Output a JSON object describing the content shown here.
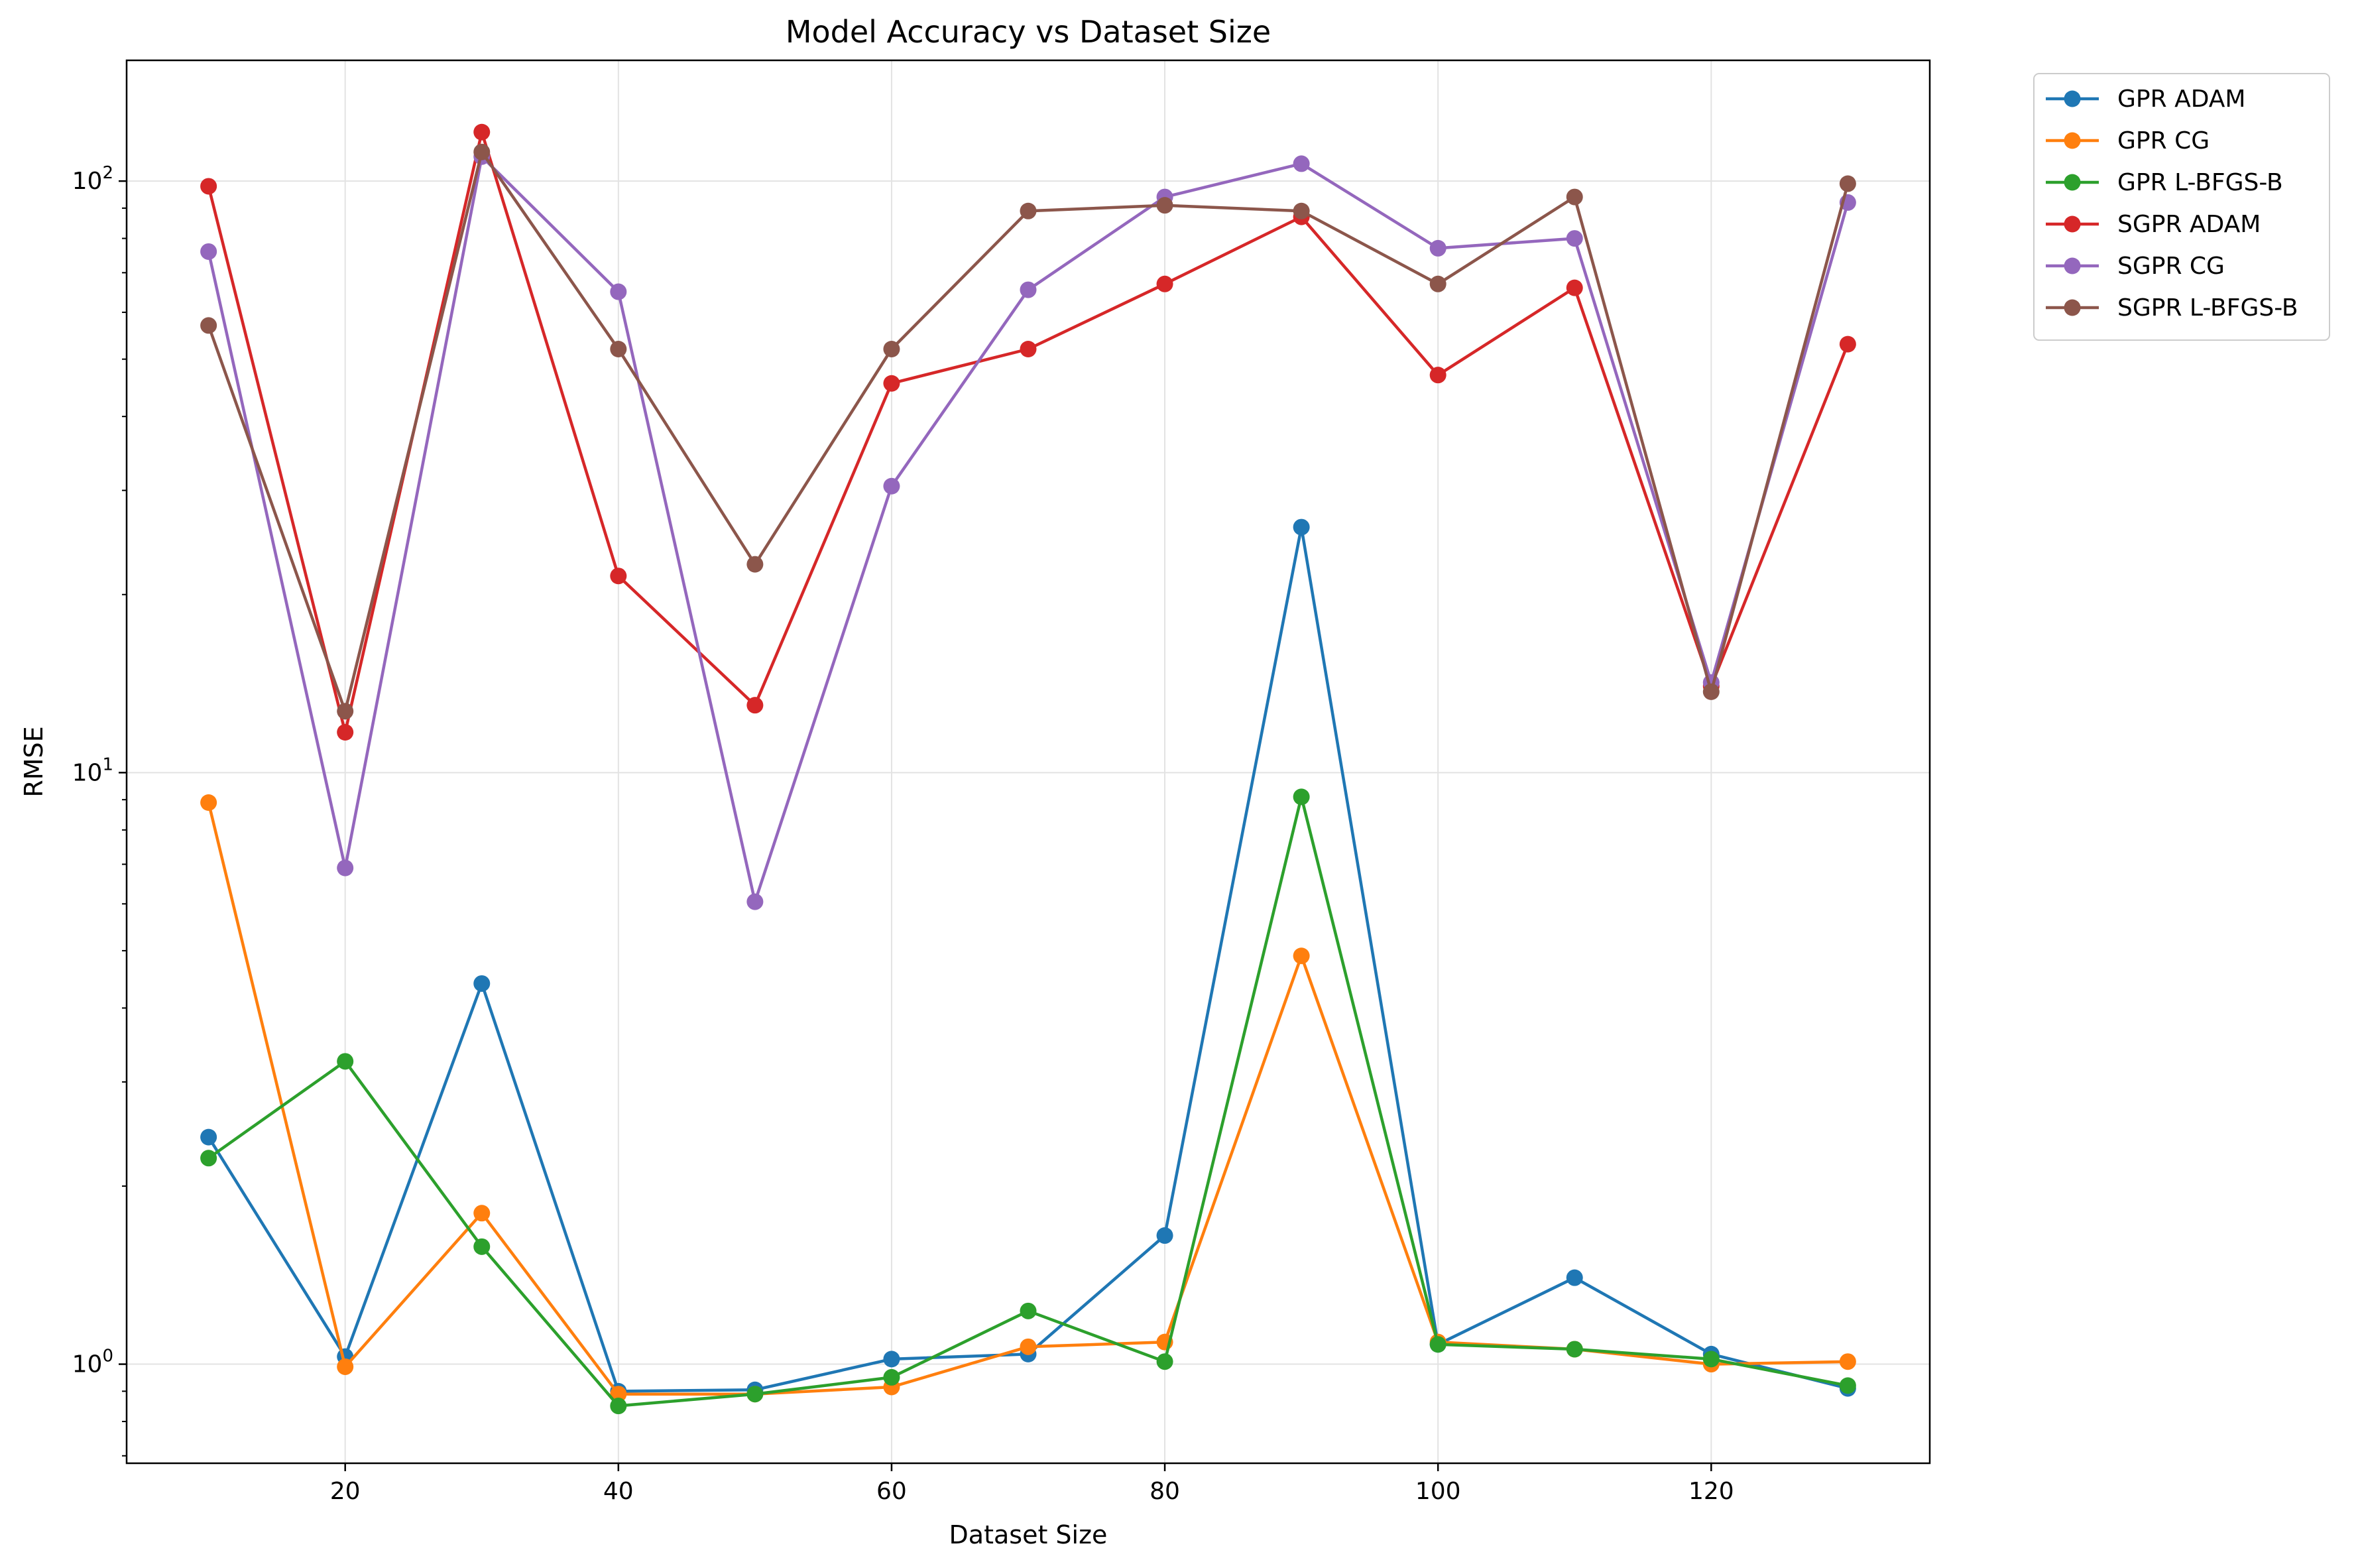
{
  "chart_data": {
    "type": "line",
    "title": "Model Accuracy vs Dataset Size",
    "xlabel": "Dataset Size",
    "ylabel": "RMSE",
    "yscale": "log",
    "xlim": [
      4,
      136
    ],
    "ylim": [
      0.68,
      160
    ],
    "x_ticks": [
      20,
      40,
      60,
      80,
      100,
      120
    ],
    "y_ticks": [
      {
        "value": 1,
        "base": "10",
        "exp": "0"
      },
      {
        "value": 10,
        "base": "10",
        "exp": "1"
      },
      {
        "value": 100,
        "base": "10",
        "exp": "2"
      }
    ],
    "grid": true,
    "legend_position": "outside-top-right",
    "x": [
      10,
      20,
      30,
      40,
      50,
      60,
      70,
      80,
      90,
      100,
      110,
      120,
      130
    ],
    "series": [
      {
        "name": "GPR ADAM",
        "color": "#1f77b4",
        "values": [
          2.42,
          1.03,
          4.4,
          0.9,
          0.905,
          1.02,
          1.04,
          1.65,
          26,
          1.08,
          1.4,
          1.04,
          0.91
        ]
      },
      {
        "name": "GPR CG",
        "color": "#ff7f0e",
        "values": [
          8.9,
          0.99,
          1.8,
          0.89,
          0.89,
          0.915,
          1.07,
          1.09,
          4.9,
          1.09,
          1.06,
          1.0,
          1.01
        ]
      },
      {
        "name": "GPR L-BFGS-B",
        "color": "#2ca02c",
        "values": [
          2.23,
          3.25,
          1.58,
          0.85,
          0.89,
          0.95,
          1.23,
          1.01,
          9.1,
          1.08,
          1.06,
          1.02,
          0.92
        ]
      },
      {
        "name": "SGPR ADAM",
        "color": "#d62728",
        "values": [
          98,
          11.7,
          121,
          21.5,
          13,
          45.5,
          52,
          67,
          87,
          47,
          66,
          14,
          53
        ]
      },
      {
        "name": "SGPR CG",
        "color": "#9467bd",
        "values": [
          76,
          6.9,
          110,
          65,
          6.05,
          30.5,
          65.5,
          94,
          107,
          77,
          80,
          14.2,
          92
        ]
      },
      {
        "name": "SGPR L-BFGS-B",
        "color": "#8c564b",
        "values": [
          57,
          12.7,
          112,
          52,
          22.5,
          52,
          89,
          91,
          89,
          67,
          94,
          13.7,
          99
        ]
      }
    ]
  }
}
